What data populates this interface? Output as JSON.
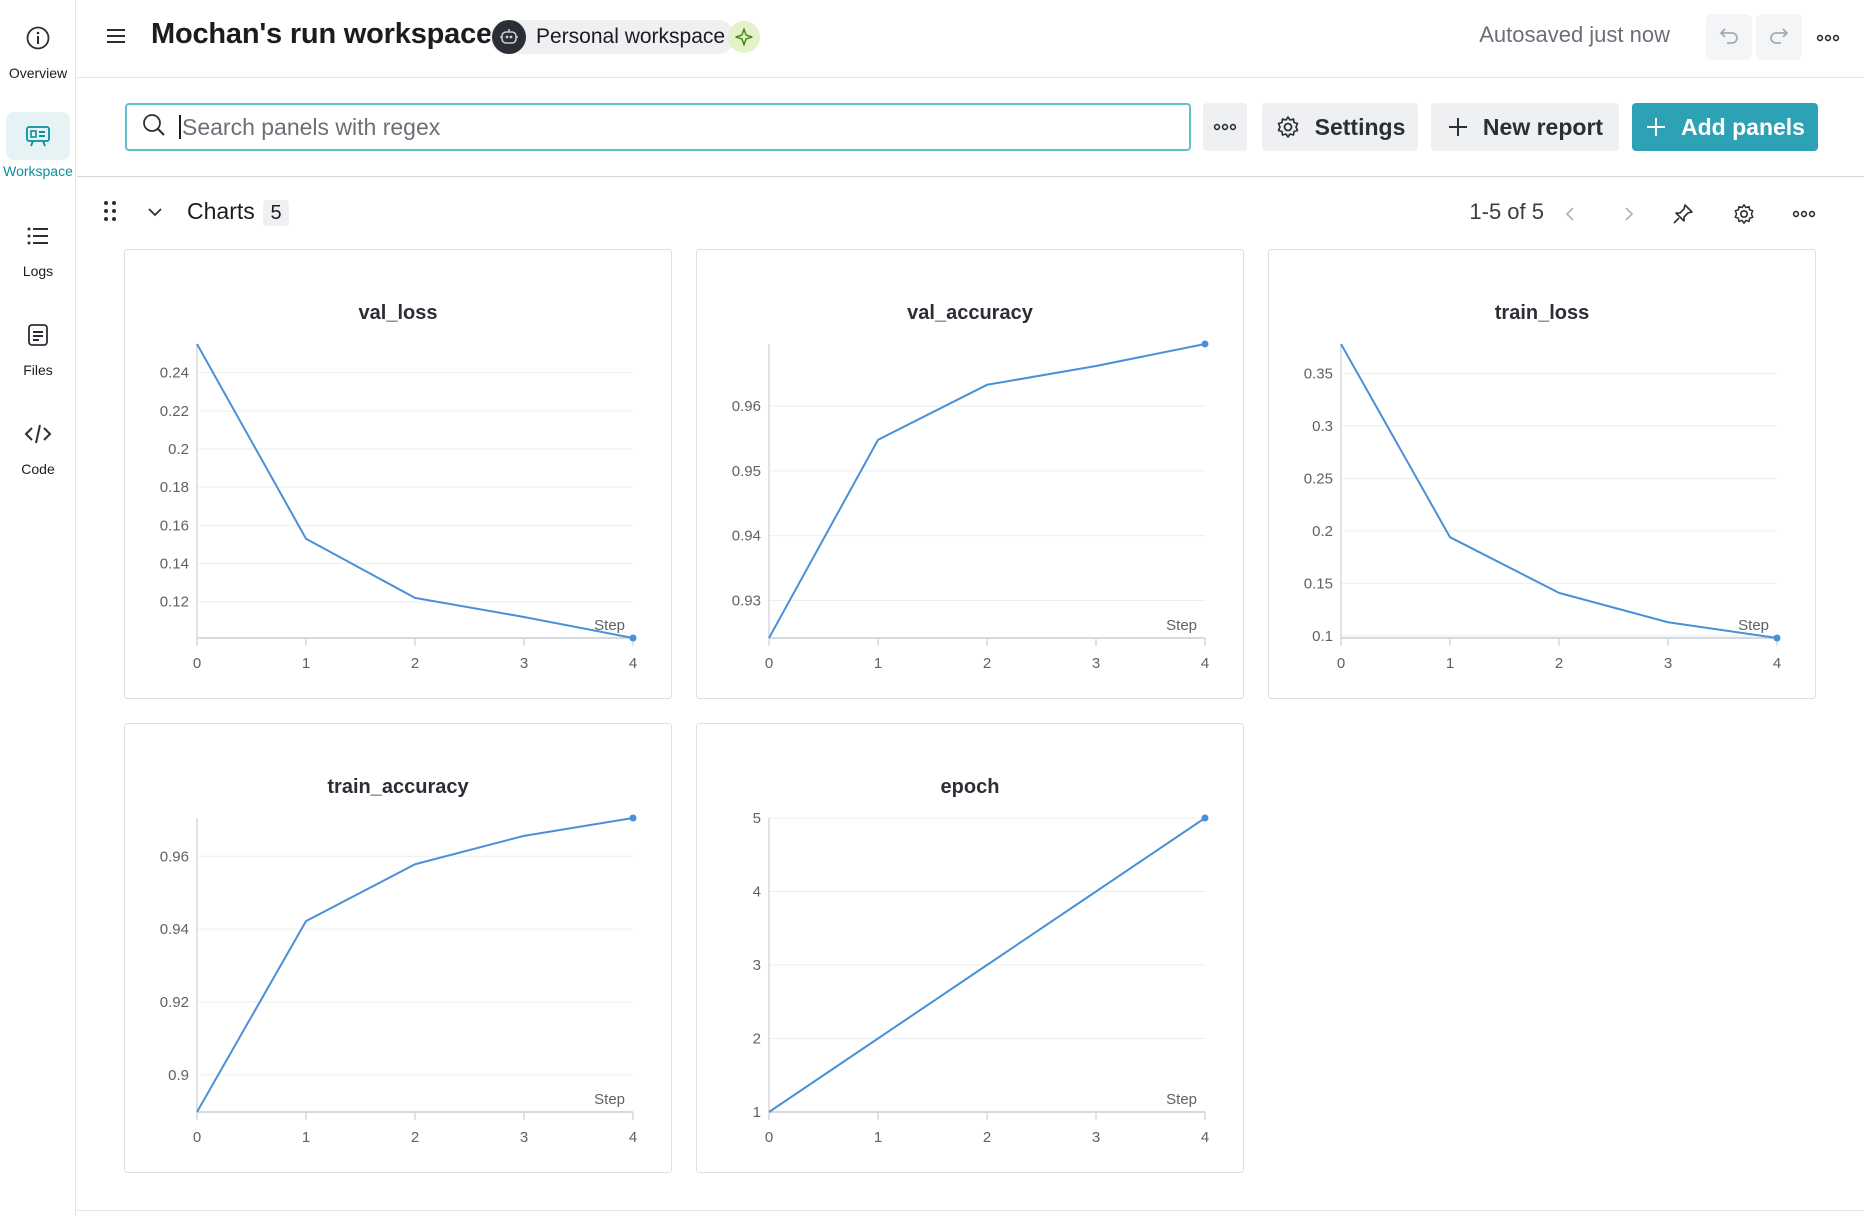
{
  "nav": {
    "items": [
      {
        "label": "Overview",
        "icon": "info-icon",
        "active": false
      },
      {
        "label": "Workspace",
        "icon": "workspace-icon",
        "active": true
      },
      {
        "label": "Logs",
        "icon": "list-icon",
        "active": false
      },
      {
        "label": "Files",
        "icon": "file-icon",
        "active": false
      },
      {
        "label": "Code",
        "icon": "code-icon",
        "active": false
      }
    ]
  },
  "header": {
    "title": "Mochan's run workspace",
    "workspace_chip": "Personal workspace",
    "autosave": "Autosaved just now"
  },
  "toolbar": {
    "search_placeholder": "Search panels with regex",
    "settings_label": "Settings",
    "new_report_label": "New report",
    "add_panels_label": "Add panels"
  },
  "section": {
    "title": "Charts",
    "count": "5",
    "pager": "1-5 of 5"
  },
  "colors": {
    "accent": "#2ea2b5",
    "line": "#4a90d9",
    "search_border": "#62c0cc"
  },
  "chart_data": [
    {
      "type": "line",
      "title": "val_loss",
      "xlabel": "Step",
      "x": [
        0,
        1,
        2,
        3,
        4
      ],
      "values": [
        0.255,
        0.153,
        0.122,
        0.112,
        0.101
      ],
      "ylim": [
        0.101,
        0.255
      ],
      "yticks": [
        "0.12",
        "0.14",
        "0.16",
        "0.18",
        "0.2",
        "0.22",
        "0.24"
      ],
      "ytick_values": [
        0.12,
        0.14,
        0.16,
        0.18,
        0.2,
        0.22,
        0.24
      ],
      "xticks": [
        "0",
        "1",
        "2",
        "3",
        "4"
      ]
    },
    {
      "type": "line",
      "title": "val_accuracy",
      "xlabel": "Step",
      "x": [
        0,
        1,
        2,
        3,
        4
      ],
      "values": [
        0.9242,
        0.9548,
        0.9633,
        0.9662,
        0.9696
      ],
      "ylim": [
        0.9242,
        0.9696
      ],
      "yticks": [
        "0.93",
        "0.94",
        "0.95",
        "0.96"
      ],
      "ytick_values": [
        0.93,
        0.94,
        0.95,
        0.96
      ],
      "xticks": [
        "0",
        "1",
        "2",
        "3",
        "4"
      ]
    },
    {
      "type": "line",
      "title": "train_loss",
      "xlabel": "Step",
      "x": [
        0,
        1,
        2,
        3,
        4
      ],
      "values": [
        0.378,
        0.194,
        0.141,
        0.113,
        0.098
      ],
      "ylim": [
        0.098,
        0.378
      ],
      "yticks": [
        "0.1",
        "0.15",
        "0.2",
        "0.25",
        "0.3",
        "0.35"
      ],
      "ytick_values": [
        0.1,
        0.15,
        0.2,
        0.25,
        0.3,
        0.35
      ],
      "xticks": [
        "0",
        "1",
        "2",
        "3",
        "4"
      ]
    },
    {
      "type": "line",
      "title": "train_accuracy",
      "xlabel": "Step",
      "x": [
        0,
        1,
        2,
        3,
        4
      ],
      "values": [
        0.8898,
        0.9422,
        0.9578,
        0.9656,
        0.9705
      ],
      "ylim": [
        0.8898,
        0.9705
      ],
      "yticks": [
        "0.9",
        "0.92",
        "0.94",
        "0.96"
      ],
      "ytick_values": [
        0.9,
        0.92,
        0.94,
        0.96
      ],
      "xticks": [
        "0",
        "1",
        "2",
        "3",
        "4"
      ]
    },
    {
      "type": "line",
      "title": "epoch",
      "xlabel": "Step",
      "x": [
        0,
        1,
        2,
        3,
        4
      ],
      "values": [
        1,
        2,
        3,
        4,
        5
      ],
      "ylim": [
        1,
        5
      ],
      "yticks": [
        "1",
        "2",
        "3",
        "4",
        "5"
      ],
      "ytick_values": [
        1,
        2,
        3,
        4,
        5
      ],
      "xticks": [
        "0",
        "1",
        "2",
        "3",
        "4"
      ]
    }
  ]
}
